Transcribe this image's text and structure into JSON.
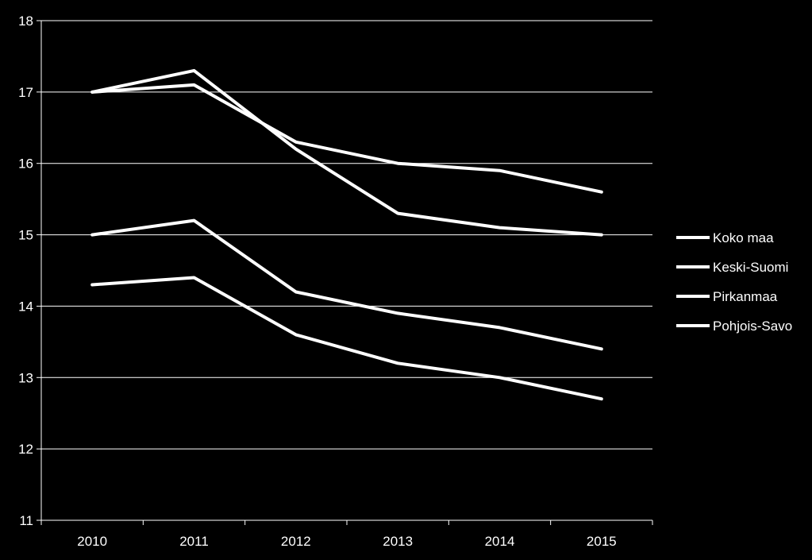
{
  "chart_data": {
    "type": "line",
    "title": "",
    "xlabel": "",
    "ylabel": "",
    "categories": [
      "2010",
      "2011",
      "2012",
      "2013",
      "2014",
      "2015"
    ],
    "ylim": [
      11,
      18
    ],
    "yticks": [
      11,
      12,
      13,
      14,
      15,
      16,
      17,
      18
    ],
    "grid": "horizontal",
    "legend_position": "right",
    "background": "#000000",
    "line_color": "#ffffff",
    "series": [
      {
        "name": "Koko maa",
        "values": [
          17.0,
          17.1,
          16.3,
          16.0,
          15.9,
          15.6
        ]
      },
      {
        "name": "Keski-Suomi",
        "values": [
          17.0,
          17.3,
          16.2,
          15.3,
          15.1,
          15.0
        ]
      },
      {
        "name": "Pirkanmaa",
        "values": [
          15.0,
          15.2,
          14.2,
          13.9,
          13.7,
          13.4
        ]
      },
      {
        "name": "Pohjois-Savo",
        "values": [
          14.3,
          14.4,
          13.6,
          13.2,
          13.0,
          12.7
        ]
      }
    ]
  }
}
